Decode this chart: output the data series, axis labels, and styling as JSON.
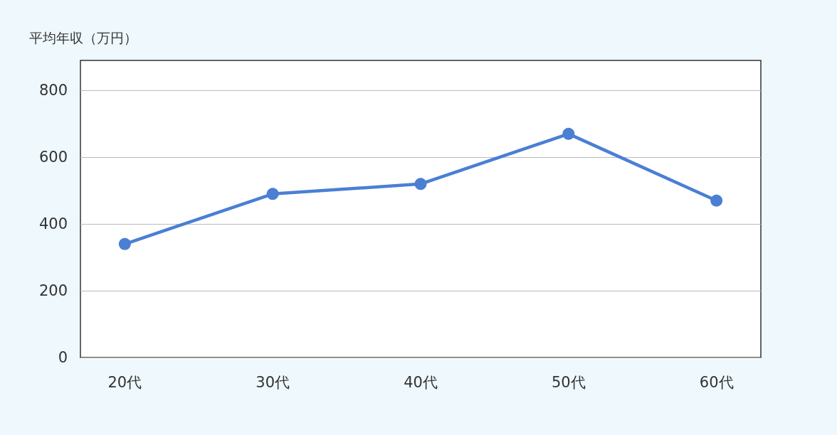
{
  "chart_data": {
    "type": "line",
    "ylabel": "平均年収（万円）",
    "categories": [
      "20代",
      "30代",
      "40代",
      "50代",
      "60代"
    ],
    "series": [
      {
        "color": "#4a7fd4",
        "values": [
          340,
          490,
          520,
          670,
          470
        ]
      }
    ],
    "ylim": [
      0,
      890
    ],
    "yticks": [
      0,
      200,
      400,
      600,
      800
    ],
    "grid": "y",
    "marker": "circle",
    "line_style": "solid"
  }
}
